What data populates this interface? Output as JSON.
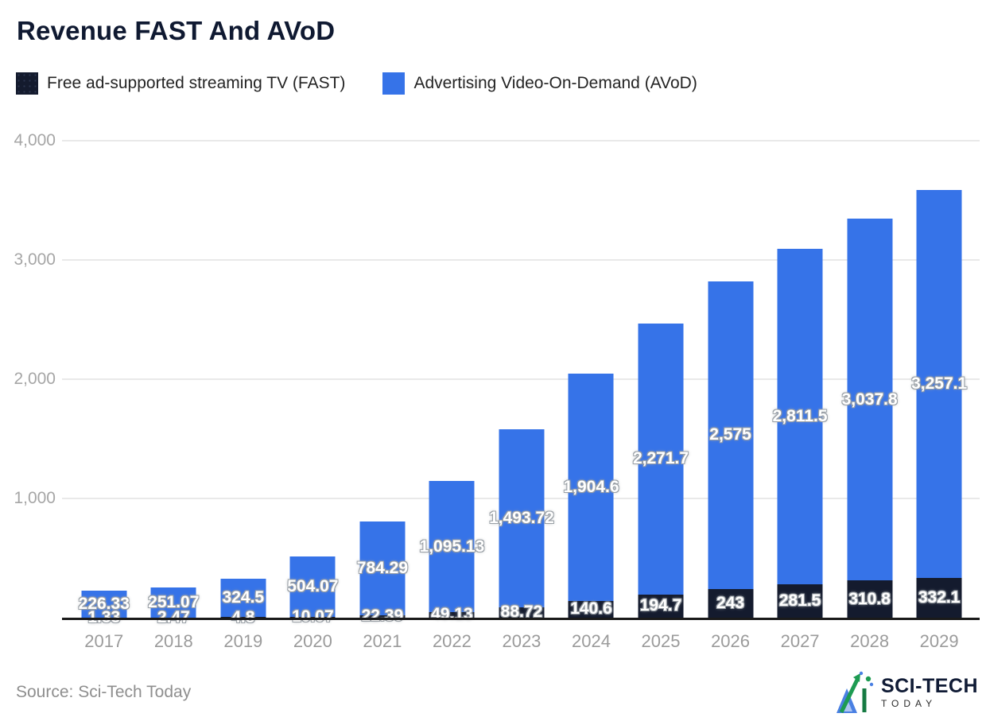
{
  "title": "Revenue FAST And AVoD",
  "legend": [
    {
      "label": "Free ad-supported streaming TV (FAST)",
      "color": "#141b2e"
    },
    {
      "label": "Advertising Video-On-Demand (AVoD)",
      "color": "#3673e8"
    }
  ],
  "colors": {
    "fast": "#141b2e",
    "avod": "#3673e8",
    "grid": "#e9e9e9",
    "axis_text": "#a6a6a6",
    "baseline": "#1a1a1a",
    "title_text": "#0f1931"
  },
  "chart_data": {
    "type": "bar",
    "stacked": true,
    "title": "Revenue FAST And AVoD",
    "xlabel": "",
    "ylabel": "",
    "ylim": [
      0,
      4000
    ],
    "grid": true,
    "legend_position": "top",
    "categories": [
      "2017",
      "2018",
      "2019",
      "2020",
      "2021",
      "2022",
      "2023",
      "2024",
      "2025",
      "2026",
      "2027",
      "2028",
      "2029"
    ],
    "yticks": [
      "4,000",
      "3,000",
      "2,000",
      "1,000"
    ],
    "series": [
      {
        "name": "Free ad-supported streaming TV (FAST)",
        "color": "#141b2e",
        "values": [
          1.33,
          2.47,
          4.8,
          10.07,
          22.39,
          49.13,
          88.72,
          140.6,
          194.7,
          243,
          281.5,
          310.8,
          332.1
        ],
        "labels": [
          "1.33",
          "2.47",
          "4.8",
          "10.07",
          "22.39",
          "49.13",
          "88.72",
          "140.6",
          "194.7",
          "243",
          "281.5",
          "310.8",
          "332.1"
        ]
      },
      {
        "name": "Advertising Video-On-Demand (AVoD)",
        "color": "#3673e8",
        "values": [
          226.33,
          251.07,
          324.5,
          504.07,
          784.29,
          1095.13,
          1493.72,
          1904.6,
          2271.7,
          2575,
          2811.5,
          3037.8,
          3257.1
        ],
        "labels": [
          "226.33",
          "251.07",
          "324.5",
          "504.07",
          "784.29",
          "1,095.13",
          "1,493.72",
          "1,904.6",
          "2,271.7",
          "2,575",
          "2,811.5",
          "3,037.8",
          "3,257.1"
        ]
      }
    ]
  },
  "footer": {
    "source": "Source: Sci-Tech Today",
    "brand_name": "SCI-TECH",
    "brand_sub": "TODAY"
  }
}
